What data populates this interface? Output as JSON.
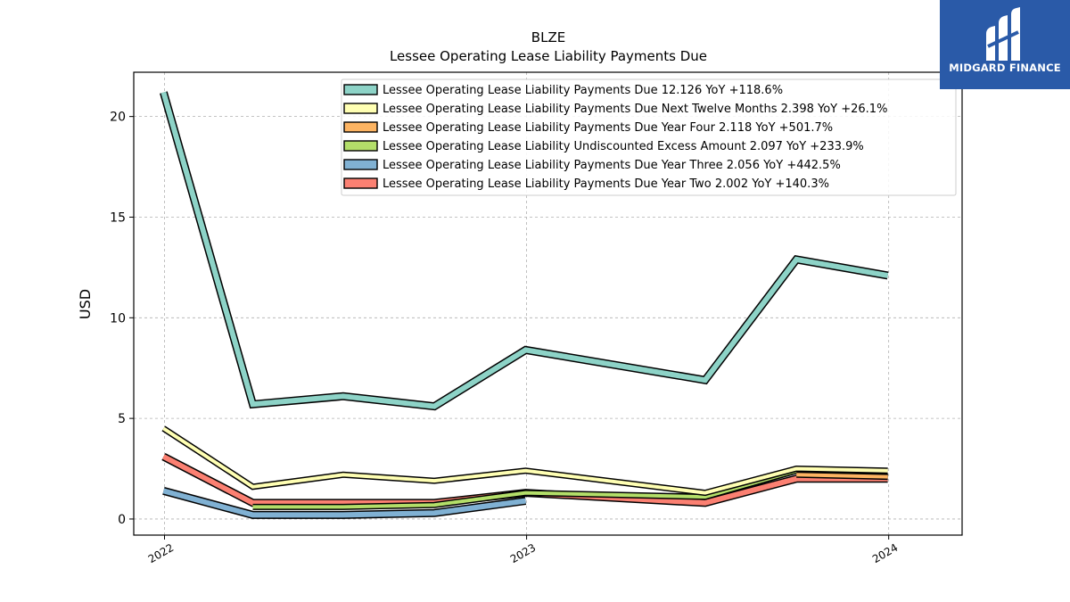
{
  "brand": {
    "name": "MIDGARD FINANCE"
  },
  "chart_data": {
    "type": "line",
    "title": "BLZE",
    "subtitle": "Lessee Operating Lease Liability Payments Due",
    "xlabel": "",
    "ylabel": "USD",
    "xlim": [
      "2021-12-01",
      "2024-03-15"
    ],
    "ylim": [
      -0.8,
      22.2
    ],
    "yticks": [
      0,
      5,
      10,
      15,
      20
    ],
    "xticks": [
      "2022",
      "2023",
      "2024"
    ],
    "grid": true,
    "legend_position": "top-right",
    "x": [
      "2021-12-31",
      "2022-03-31",
      "2022-06-30",
      "2022-09-30",
      "2022-12-31",
      "2023-06-30",
      "2023-09-30",
      "2023-12-31"
    ],
    "series": [
      {
        "name": "Lessee Operating Lease Liability Payments Due",
        "legend": "Lessee Operating Lease Liability Payments Due  12.126 YoY +118.6%",
        "color": "#8dd3c7",
        "width": 6,
        "values": [
          21.2,
          5.7,
          6.1,
          5.6,
          8.4,
          6.9,
          12.9,
          12.1
        ]
      },
      {
        "name": "Lessee Operating Lease Liability Payments Due Next Twelve Months",
        "legend": "Lessee Operating Lease Liability Payments Due Next Twelve Months  2.398 YoY +26.1%",
        "color": "#ffffb3",
        "width": 4,
        "values": [
          4.5,
          1.6,
          2.2,
          1.9,
          2.4,
          1.3,
          2.5,
          2.4
        ]
      },
      {
        "name": "Lessee Operating Lease Liability Payments Due Year Four",
        "legend": "Lessee Operating Lease Liability Payments Due Year Four  2.118 YoY +501.7%",
        "color": "#fdb462",
        "width": 4,
        "values": [
          null,
          null,
          null,
          null,
          null,
          null,
          2.2,
          2.1
        ]
      },
      {
        "name": "Lessee Operating Lease Liability Undiscounted Excess Amount",
        "legend": "Lessee Operating Lease Liability Undiscounted Excess Amount  2.097 YoY +233.9%",
        "color": "#b3de69",
        "width": 4,
        "values": [
          null,
          0.6,
          0.6,
          0.7,
          1.3,
          1.1,
          2.4,
          2.1
        ]
      },
      {
        "name": "Lessee Operating Lease Liability Payments Due Year Three",
        "legend": "Lessee Operating Lease Liability Payments Due Year Three  2.056 YoY +442.5%",
        "color": "#80b1d3",
        "width": 6,
        "values": [
          1.4,
          0.2,
          0.2,
          0.3,
          0.9,
          null,
          null,
          null
        ]
      },
      {
        "name": "Lessee Operating Lease Liability Payments Due Year Two",
        "legend": "Lessee Operating Lease Liability Payments Due Year Two  2.002 YoY +140.3%",
        "color": "#fb8072",
        "width": 6,
        "values": [
          3.1,
          0.8,
          0.8,
          0.8,
          1.3,
          0.8,
          2.0,
          2.0
        ]
      }
    ]
  }
}
